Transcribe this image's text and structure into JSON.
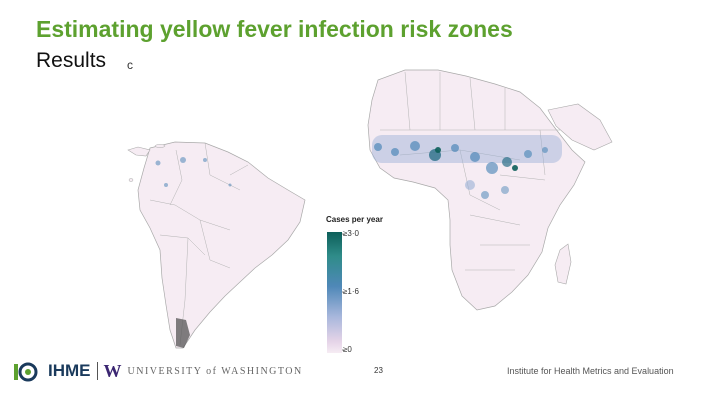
{
  "slide": {
    "title": "Estimating yellow fever infection risk zones",
    "subtitle": "Results",
    "panel_letter": "c",
    "page_number": "23"
  },
  "legend": {
    "title": "Cases per year",
    "ticks": [
      "≥3·0",
      "≥1·6",
      "≥0"
    ],
    "colors": [
      "#0d5f5a",
      "#4f88b8",
      "#f6ecf3"
    ]
  },
  "footer": {
    "ihme": "IHME",
    "uw_mark": "W",
    "uw_text": "UNIVERSITY of WASHINGTON",
    "institute": "Institute for Health Metrics and Evaluation"
  },
  "map": {
    "land_color": "#f6ecf3",
    "border_color": "#a9a9a9",
    "hotspot_colors": [
      "#4f88b8",
      "#2a6f88",
      "#9ab0d6"
    ]
  }
}
